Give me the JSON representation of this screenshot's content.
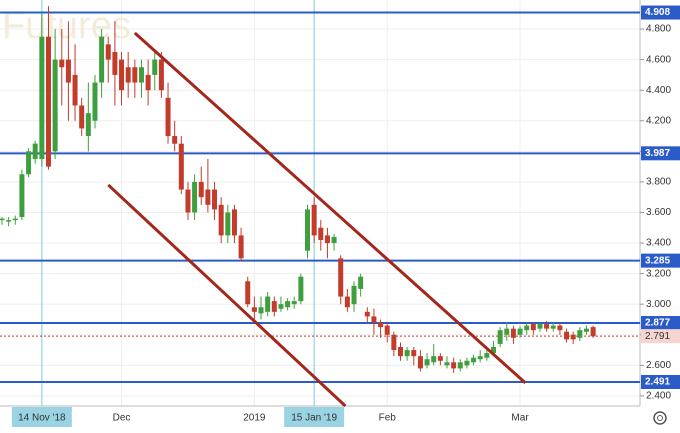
{
  "chart_data": {
    "type": "candlestick",
    "watermark": "Futures",
    "x": [
      0,
      1,
      2,
      3,
      4,
      5,
      6,
      7,
      8,
      9,
      10,
      11,
      12,
      13,
      14,
      15,
      16,
      17,
      18,
      19,
      20,
      21,
      22,
      23,
      24,
      25,
      26,
      27,
      28,
      29,
      30,
      31,
      32,
      33,
      34,
      35,
      36,
      37,
      38,
      39,
      40,
      41,
      42,
      43,
      44,
      45,
      46,
      47,
      48,
      49,
      50,
      51,
      52,
      53,
      54,
      55,
      56,
      57,
      58,
      59,
      60,
      61,
      62,
      63,
      64,
      65,
      66,
      67,
      68,
      69,
      70,
      71,
      72,
      73,
      74,
      75,
      76,
      77,
      78,
      79,
      80,
      81,
      82,
      83,
      84,
      85,
      86,
      87,
      88,
      89
    ],
    "open": [
      3.55,
      3.54,
      3.55,
      3.57,
      3.85,
      3.95,
      3.95,
      4.75,
      4.0,
      4.6,
      4.6,
      4.5,
      4.3,
      4.1,
      4.2,
      4.45,
      4.7,
      4.65,
      4.6,
      4.55,
      4.55,
      4.45,
      4.5,
      4.5,
      4.6,
      4.35,
      4.1,
      4.05,
      3.75,
      3.6,
      3.8,
      3.75,
      3.75,
      3.65,
      3.45,
      3.62,
      3.45,
      3.15,
      2.98,
      2.94,
      2.95,
      3.02,
      2.97,
      2.98,
      3.0,
      3.02,
      3.35,
      3.65,
      3.5,
      3.45,
      3.4,
      3.3,
      3.05,
      3.0,
      3.1,
      2.95,
      2.92,
      2.88,
      2.86,
      2.8,
      2.72,
      2.66,
      2.7,
      2.66,
      2.6,
      2.62,
      2.66,
      2.6,
      2.62,
      2.58,
      2.6,
      2.62,
      2.64,
      2.65,
      2.68,
      2.74,
      2.8,
      2.84,
      2.8,
      2.83,
      2.87,
      2.84,
      2.87,
      2.84,
      2.86,
      2.82,
      2.8,
      2.78,
      2.82,
      2.85
    ],
    "high": [
      3.57,
      3.57,
      3.58,
      3.88,
      4.02,
      4.07,
      4.9,
      4.95,
      4.8,
      4.8,
      4.85,
      4.7,
      4.35,
      4.45,
      4.5,
      4.8,
      4.75,
      4.85,
      4.65,
      4.65,
      4.6,
      4.6,
      4.6,
      4.65,
      4.65,
      4.45,
      4.2,
      4.1,
      3.8,
      3.85,
      3.9,
      3.95,
      3.8,
      3.7,
      3.65,
      3.65,
      3.5,
      3.18,
      3.05,
      3.05,
      3.08,
      3.05,
      3.05,
      3.04,
      3.05,
      3.2,
      3.65,
      3.7,
      3.55,
      3.5,
      3.46,
      3.32,
      3.1,
      3.15,
      3.2,
      2.98,
      2.97,
      2.9,
      2.88,
      2.82,
      2.75,
      2.72,
      2.72,
      2.7,
      2.68,
      2.74,
      2.68,
      2.66,
      2.65,
      2.64,
      2.65,
      2.67,
      2.7,
      2.7,
      2.76,
      2.85,
      2.88,
      2.86,
      2.86,
      2.88,
      2.88,
      2.88,
      2.89,
      2.88,
      2.88,
      2.84,
      2.82,
      2.85,
      2.86,
      2.86
    ],
    "low": [
      3.52,
      3.51,
      3.52,
      3.55,
      3.83,
      3.92,
      3.9,
      3.88,
      3.95,
      4.3,
      4.2,
      4.2,
      4.1,
      4.0,
      4.15,
      4.35,
      4.45,
      4.3,
      4.3,
      4.35,
      4.35,
      4.35,
      4.3,
      4.4,
      4.35,
      4.05,
      4.0,
      3.72,
      3.55,
      3.55,
      3.65,
      3.6,
      3.55,
      3.4,
      3.4,
      3.4,
      3.28,
      2.98,
      2.9,
      2.9,
      2.92,
      2.92,
      2.95,
      2.96,
      2.97,
      3.0,
      3.3,
      3.4,
      3.35,
      3.3,
      3.35,
      3.0,
      2.95,
      2.95,
      3.05,
      2.88,
      2.8,
      2.78,
      2.75,
      2.66,
      2.63,
      2.63,
      2.6,
      2.56,
      2.58,
      2.6,
      2.6,
      2.58,
      2.55,
      2.56,
      2.58,
      2.6,
      2.62,
      2.63,
      2.66,
      2.72,
      2.76,
      2.74,
      2.78,
      2.8,
      2.8,
      2.82,
      2.82,
      2.82,
      2.8,
      2.75,
      2.74,
      2.76,
      2.8,
      2.78
    ],
    "close": [
      3.56,
      3.55,
      3.56,
      3.85,
      4.0,
      4.05,
      4.75,
      3.9,
      4.6,
      4.55,
      4.45,
      4.3,
      4.15,
      4.25,
      4.45,
      4.75,
      4.6,
      4.5,
      4.4,
      4.45,
      4.45,
      4.55,
      4.4,
      4.6,
      4.4,
      4.1,
      4.05,
      3.75,
      3.6,
      3.8,
      3.7,
      3.65,
      3.62,
      3.45,
      3.6,
      3.45,
      3.3,
      3.0,
      2.95,
      2.98,
      3.05,
      2.95,
      3.0,
      3.02,
      3.02,
      3.18,
      3.62,
      3.45,
      3.42,
      3.4,
      3.44,
      3.05,
      2.98,
      3.12,
      3.18,
      2.92,
      2.88,
      2.85,
      2.8,
      2.7,
      2.66,
      2.7,
      2.66,
      2.58,
      2.64,
      2.66,
      2.63,
      2.62,
      2.58,
      2.62,
      2.63,
      2.65,
      2.66,
      2.68,
      2.72,
      2.83,
      2.84,
      2.78,
      2.84,
      2.86,
      2.83,
      2.87,
      2.84,
      2.86,
      2.83,
      2.77,
      2.77,
      2.83,
      2.84,
      2.79
    ],
    "up_color": "#3f9f3f",
    "down_color": "#c23b2b",
    "xlim": [
      -0.3,
      96
    ],
    "ylim": [
      2.334,
      4.99
    ],
    "yticks": [
      {
        "value": 2.4,
        "label": "2.400"
      },
      {
        "value": 2.6,
        "label": "2.600"
      },
      {
        "value": 2.8,
        "label": "2.800"
      },
      {
        "value": 3.0,
        "label": "3.000"
      },
      {
        "value": 3.2,
        "label": "3.200"
      },
      {
        "value": 3.4,
        "label": "3.400"
      },
      {
        "value": 3.6,
        "label": "3.600"
      },
      {
        "value": 3.8,
        "label": "3.800"
      },
      {
        "value": 4.0,
        "label": "4.000"
      },
      {
        "value": 4.2,
        "label": "4.200"
      },
      {
        "value": 4.4,
        "label": "4.400"
      },
      {
        "value": 4.6,
        "label": "4.600"
      },
      {
        "value": 4.8,
        "label": "4.800"
      }
    ],
    "xticks": [
      {
        "value": 6,
        "label": "14 Nov '18",
        "highlight": true
      },
      {
        "value": 18,
        "label": "Dec"
      },
      {
        "value": 38,
        "label": "2019"
      },
      {
        "value": 47,
        "label": "15 Jan '19",
        "highlight": true
      },
      {
        "value": 58,
        "label": "Feb"
      },
      {
        "value": 78,
        "label": "Mar"
      }
    ],
    "grid": true,
    "levels": [
      {
        "value": 4.908,
        "label": "4.908"
      },
      {
        "value": 3.987,
        "label": "3.987"
      },
      {
        "value": 3.285,
        "label": "3.285"
      },
      {
        "value": 2.877,
        "label": "2.877"
      },
      {
        "value": 2.491,
        "label": "2.491"
      }
    ],
    "level_color": "#2a5bc9",
    "last_price": {
      "value": 2.791,
      "label": "2.791"
    },
    "trendlines": [
      {
        "x": [
          20,
          78.8
        ],
        "y": [
          4.774,
          2.485
        ]
      },
      {
        "x": [
          16,
          51.7
        ],
        "y": [
          3.78,
          2.334
        ]
      }
    ],
    "trend_color": "#a3271a"
  }
}
